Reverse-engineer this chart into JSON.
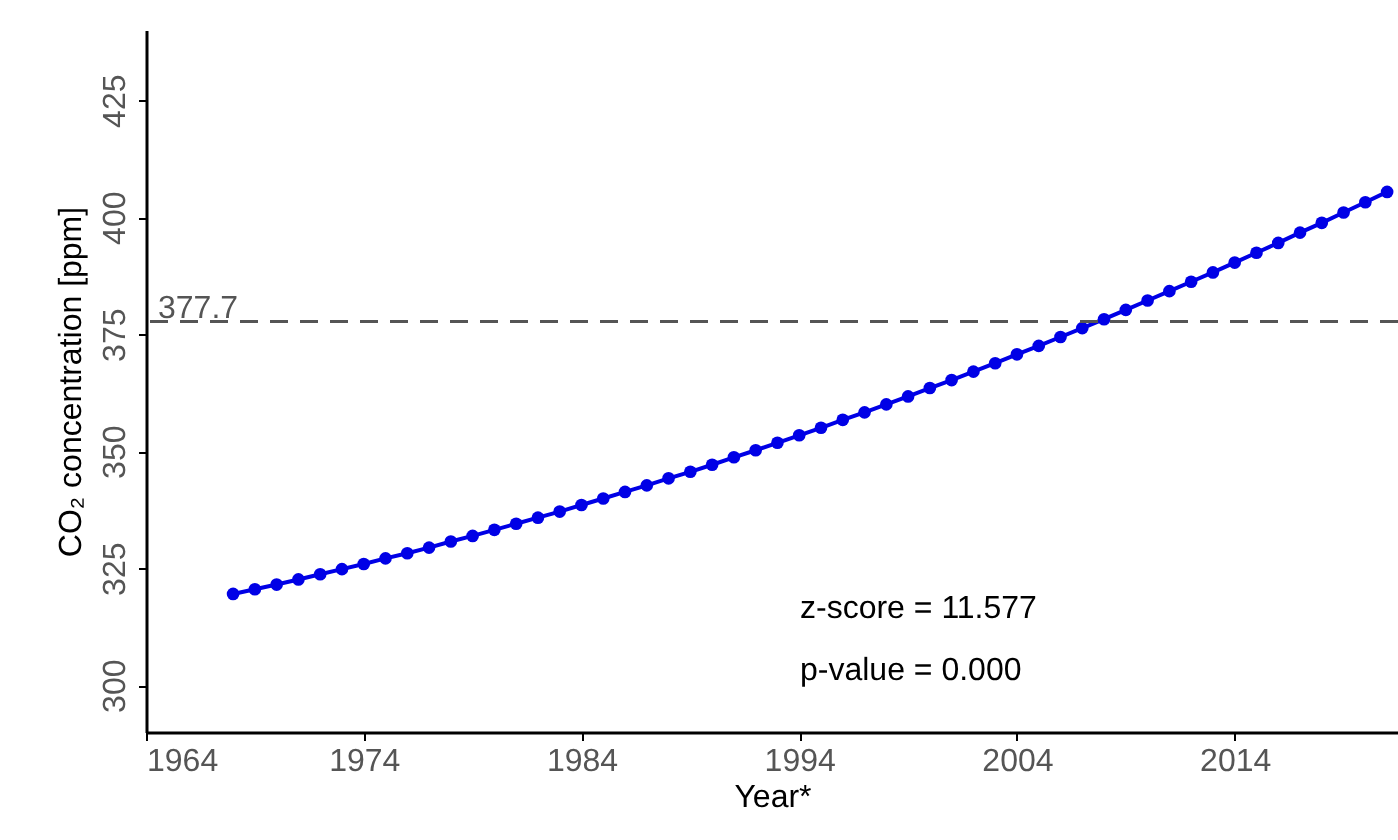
{
  "chart_data": {
    "type": "line",
    "xlabel": "Year*",
    "ylabel": "CO₂ concentration [ppm]",
    "x": [
      1968,
      1969,
      1970,
      1971,
      1972,
      1973,
      1974,
      1975,
      1976,
      1977,
      1978,
      1979,
      1980,
      1981,
      1982,
      1983,
      1984,
      1985,
      1986,
      1987,
      1988,
      1989,
      1990,
      1991,
      1992,
      1993,
      1994,
      1995,
      1996,
      1997,
      1998,
      1999,
      2000,
      2001,
      2002,
      2003,
      2004,
      2005,
      2006,
      2007,
      2008,
      2009,
      2010,
      2011,
      2012,
      2013,
      2014,
      2015,
      2016,
      2017,
      2018,
      2019,
      2020,
      2021
    ],
    "series": [
      {
        "color": "#0000e6",
        "values": [
          319.5,
          320.5,
          321.5,
          322.6,
          323.7,
          324.8,
          325.9,
          327.1,
          328.2,
          329.4,
          330.7,
          331.9,
          333.2,
          334.5,
          335.8,
          337.1,
          338.5,
          339.9,
          341.3,
          342.7,
          344.2,
          345.6,
          347.1,
          348.7,
          350.2,
          351.8,
          353.4,
          355.0,
          356.7,
          358.3,
          360.0,
          361.7,
          363.5,
          365.2,
          367.0,
          368.8,
          370.7,
          372.5,
          374.4,
          376.3,
          378.2,
          380.2,
          382.2,
          384.2,
          386.2,
          388.2,
          390.3,
          392.4,
          394.5,
          396.7,
          398.8,
          401.0,
          403.2,
          405.4
        ]
      }
    ],
    "xlim": [
      1964,
      2021.5
    ],
    "xticks": [
      1964,
      1974,
      1984,
      1994,
      2004,
      2014
    ],
    "ylim": [
      290,
      440
    ],
    "yticks": [
      300,
      325,
      350,
      375,
      400,
      425
    ],
    "ref_lines": [
      {
        "axis": "y",
        "value": 377.7,
        "label": "377.7",
        "color": "#555555",
        "line_style": "dashed"
      }
    ],
    "annotations": [
      "z-score = 11.577",
      "p-value = 0.000"
    ],
    "grid": false,
    "marker": "circle",
    "line_style": "solid"
  }
}
